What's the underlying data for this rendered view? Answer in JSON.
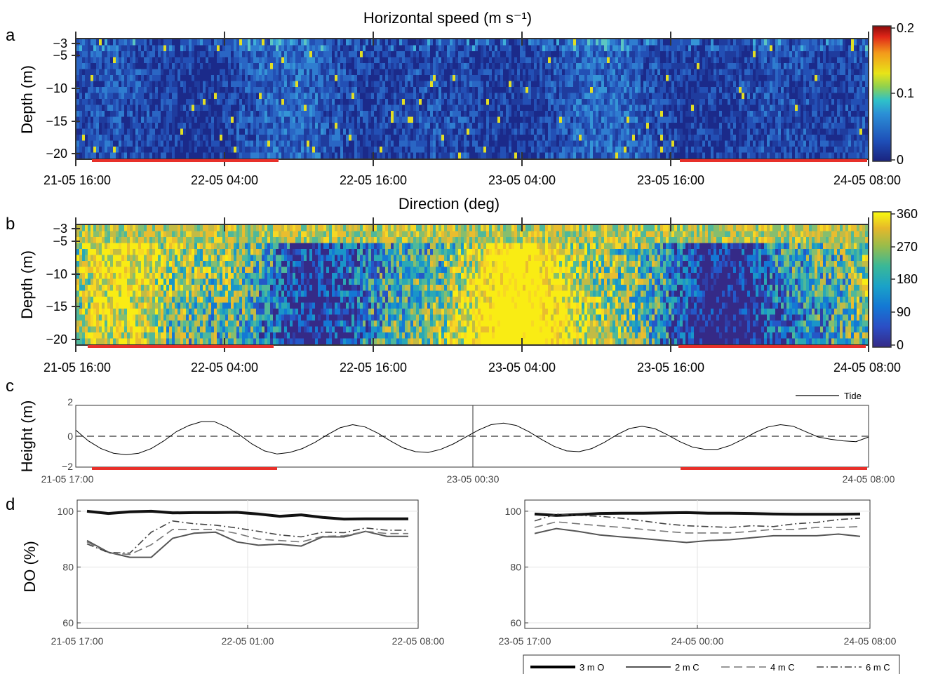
{
  "chart_data": [
    {
      "panel": "a",
      "type": "heatmap",
      "title": "Horizontal speed (m s⁻¹)",
      "ylabel": "Depth (m)",
      "y_ticks": [
        "−3",
        "−5",
        "−10",
        "−15",
        "−20"
      ],
      "ylim": [
        -21,
        -2
      ],
      "x_ticks": [
        "21-05 16:00",
        "22-05 04:00",
        "22-05 16:00",
        "23-05 04:00",
        "23-05 16:00",
        "24-05 08:00"
      ],
      "xlim": [
        "21-05 16:00",
        "24-05 08:00"
      ],
      "colorbar": {
        "ticks": [
          "0",
          "0.1",
          "0.2"
        ],
        "range": [
          0,
          0.2
        ],
        "colormap": "jet"
      },
      "night_bars": [
        [
          "21-05 17:00",
          "22-05 08:00"
        ],
        [
          "23-05 17:00",
          "24-05 08:00"
        ]
      ],
      "bar_color": "#e8302a"
    },
    {
      "panel": "b",
      "type": "heatmap",
      "title": "Direction (deg)",
      "ylabel": "Depth (m)",
      "y_ticks": [
        "−3",
        "−5",
        "−10",
        "−15",
        "−20"
      ],
      "ylim": [
        -21,
        -2
      ],
      "x_ticks": [
        "21-05 16:00",
        "22-05 04:00",
        "22-05 16:00",
        "23-05 04:00",
        "23-05 16:00",
        "24-05 08:00"
      ],
      "xlim": [
        "21-05 16:00",
        "24-05 08:00"
      ],
      "colorbar": {
        "ticks": [
          "0",
          "90",
          "180",
          "270",
          "360"
        ],
        "range": [
          0,
          360
        ],
        "colormap": "parula"
      },
      "night_bars": [
        [
          "21-05 17:00",
          "22-05 08:00"
        ],
        [
          "23-05 17:00",
          "24-05 08:00"
        ]
      ],
      "bar_color": "#e8302a"
    },
    {
      "panel": "c",
      "type": "line",
      "ylabel": "Height (m)",
      "y_ticks": [
        "2",
        "0",
        "−2"
      ],
      "ylim": [
        -2,
        2
      ],
      "x_ticks": [
        "21-05 17:00",
        "23-05 00:30",
        "24-05 08:00"
      ],
      "series": [
        {
          "name": "Tide",
          "x": [
            "21-05 17:00",
            "21-05 18:00",
            "21-05 19:00",
            "21-05 20:00",
            "21-05 21:00",
            "21-05 22:00",
            "21-05 23:00",
            "22-05 00:00",
            "22-05 01:00",
            "22-05 02:00",
            "22-05 03:00",
            "22-05 04:00",
            "22-05 05:00",
            "22-05 06:00",
            "22-05 07:00",
            "22-05 08:00",
            "22-05 09:00",
            "22-05 10:00",
            "22-05 11:00",
            "22-05 12:00",
            "22-05 13:00",
            "22-05 14:00",
            "22-05 15:00",
            "22-05 16:00",
            "22-05 17:00",
            "22-05 18:00",
            "22-05 19:00",
            "22-05 20:00",
            "22-05 21:00",
            "22-05 22:00",
            "22-05 23:00",
            "23-05 00:00",
            "23-05 01:00",
            "23-05 02:00",
            "23-05 03:00",
            "23-05 04:00",
            "23-05 05:00",
            "23-05 06:00",
            "23-05 07:00",
            "23-05 08:00",
            "23-05 09:00",
            "23-05 10:00",
            "23-05 11:00",
            "23-05 12:00",
            "23-05 13:00",
            "23-05 14:00",
            "23-05 15:00",
            "23-05 16:00",
            "23-05 17:00",
            "23-05 18:00",
            "23-05 19:00",
            "23-05 20:00",
            "23-05 21:00",
            "23-05 22:00",
            "23-05 23:00",
            "24-05 00:00",
            "24-05 01:00",
            "24-05 02:00",
            "24-05 03:00",
            "24-05 04:00",
            "24-05 05:00",
            "24-05 06:00",
            "24-05 07:00",
            "24-05 08:00"
          ],
          "values": [
            0.4,
            -0.3,
            -0.8,
            -1.1,
            -1.2,
            -1.1,
            -0.8,
            -0.3,
            0.3,
            0.7,
            0.95,
            0.95,
            0.6,
            0.1,
            -0.5,
            -0.95,
            -1.15,
            -1.05,
            -0.8,
            -0.4,
            0.1,
            0.55,
            0.75,
            0.6,
            0.2,
            -0.3,
            -0.75,
            -1.0,
            -1.05,
            -0.85,
            -0.5,
            -0.05,
            0.4,
            0.75,
            0.85,
            0.7,
            0.3,
            -0.2,
            -0.65,
            -0.95,
            -1.0,
            -0.8,
            -0.4,
            0.1,
            0.5,
            0.65,
            0.5,
            0.1,
            -0.35,
            -0.7,
            -0.85,
            -0.85,
            -0.6,
            -0.2,
            0.25,
            0.6,
            0.75,
            0.65,
            0.3,
            -0.05,
            -0.2,
            -0.3,
            -0.35,
            -0.05
          ]
        }
      ],
      "zero_line": "dashed",
      "night_bars": [
        [
          "21-05 17:00",
          "22-05 08:00"
        ],
        [
          "23-05 17:00",
          "24-05 08:00"
        ]
      ],
      "bar_color": "#e8302a"
    },
    {
      "panel": "d-left",
      "type": "line",
      "ylabel": "DO (%)",
      "ylim": [
        58,
        104
      ],
      "y_ticks": [
        60,
        80,
        100
      ],
      "x_ticks": [
        "21-05 17:00",
        "22-05 01:00",
        "22-05 08:00"
      ],
      "x": [
        "21-05 17:00",
        "21-05 18:00",
        "21-05 19:00",
        "21-05 20:00",
        "21-05 21:00",
        "21-05 22:00",
        "21-05 23:00",
        "22-05 00:00",
        "22-05 01:00",
        "22-05 02:00",
        "22-05 03:00",
        "22-05 04:00",
        "22-05 05:00",
        "22-05 06:00",
        "22-05 07:00",
        "22-05 08:00"
      ],
      "series": [
        {
          "name": "3 m O",
          "values": [
            100.0,
            99.2,
            99.8,
            100.0,
            99.4,
            99.5,
            99.5,
            99.6,
            99.0,
            98.2,
            98.7,
            97.8,
            97.2,
            97.3,
            97.3,
            97.3
          ]
        },
        {
          "name": "2 m C",
          "values": [
            89.5,
            85.3,
            83.5,
            83.5,
            90.3,
            92.1,
            92.5,
            89.0,
            87.8,
            88.2,
            87.5,
            90.8,
            90.8,
            92.8,
            91.0,
            91.0
          ]
        },
        {
          "name": "4 m C",
          "values": [
            89.0,
            85.0,
            84.5,
            88.0,
            93.5,
            93.5,
            93.5,
            92.0,
            90.0,
            89.5,
            89.0,
            91.0,
            91.2,
            92.8,
            92.0,
            92.0
          ]
        },
        {
          "name": "6 m C",
          "values": [
            88.3,
            85.2,
            85.0,
            92.5,
            96.5,
            95.5,
            95.0,
            94.0,
            92.8,
            91.5,
            90.8,
            92.5,
            92.3,
            94.0,
            93.2,
            93.2
          ]
        }
      ]
    },
    {
      "panel": "d-right",
      "type": "line",
      "ylim": [
        58,
        104
      ],
      "y_ticks": [
        60,
        80,
        100
      ],
      "x_ticks": [
        "23-05 17:00",
        "24-05 00:00",
        "24-05 08:00"
      ],
      "x": [
        "23-05 17:00",
        "23-05 18:00",
        "23-05 19:00",
        "23-05 20:00",
        "23-05 21:00",
        "23-05 22:00",
        "23-05 23:00",
        "24-05 00:00",
        "24-05 01:00",
        "24-05 02:00",
        "24-05 03:00",
        "24-05 04:00",
        "24-05 05:00",
        "24-05 06:00",
        "24-05 07:00",
        "24-05 08:00"
      ],
      "series": [
        {
          "name": "3 m O",
          "values": [
            99.0,
            98.5,
            98.8,
            99.2,
            99.3,
            99.3,
            99.4,
            99.5,
            99.3,
            99.3,
            99.2,
            99.0,
            98.9,
            98.9,
            98.9,
            99.0
          ]
        },
        {
          "name": "2 m C",
          "values": [
            92.0,
            93.8,
            92.8,
            91.5,
            90.8,
            90.2,
            89.5,
            88.8,
            89.5,
            89.8,
            90.5,
            91.2,
            91.2,
            91.2,
            91.8,
            91.0
          ]
        },
        {
          "name": "4 m C",
          "values": [
            94.2,
            96.2,
            95.5,
            94.8,
            94.2,
            93.5,
            92.8,
            92.2,
            92.2,
            92.2,
            92.8,
            93.5,
            93.5,
            94.2,
            94.2,
            94.5
          ]
        },
        {
          "name": "6 m C",
          "values": [
            96.5,
            99.0,
            98.5,
            98.2,
            97.5,
            96.5,
            95.5,
            94.8,
            94.5,
            94.2,
            94.8,
            94.5,
            95.5,
            96.0,
            97.0,
            97.5
          ]
        }
      ],
      "legend": {
        "placement": "bottom-right",
        "entries": [
          "3 m O",
          "2 m C",
          "4 m C",
          "6 m C"
        ]
      }
    }
  ],
  "panel_letters": [
    "a",
    "b",
    "c",
    "d"
  ]
}
